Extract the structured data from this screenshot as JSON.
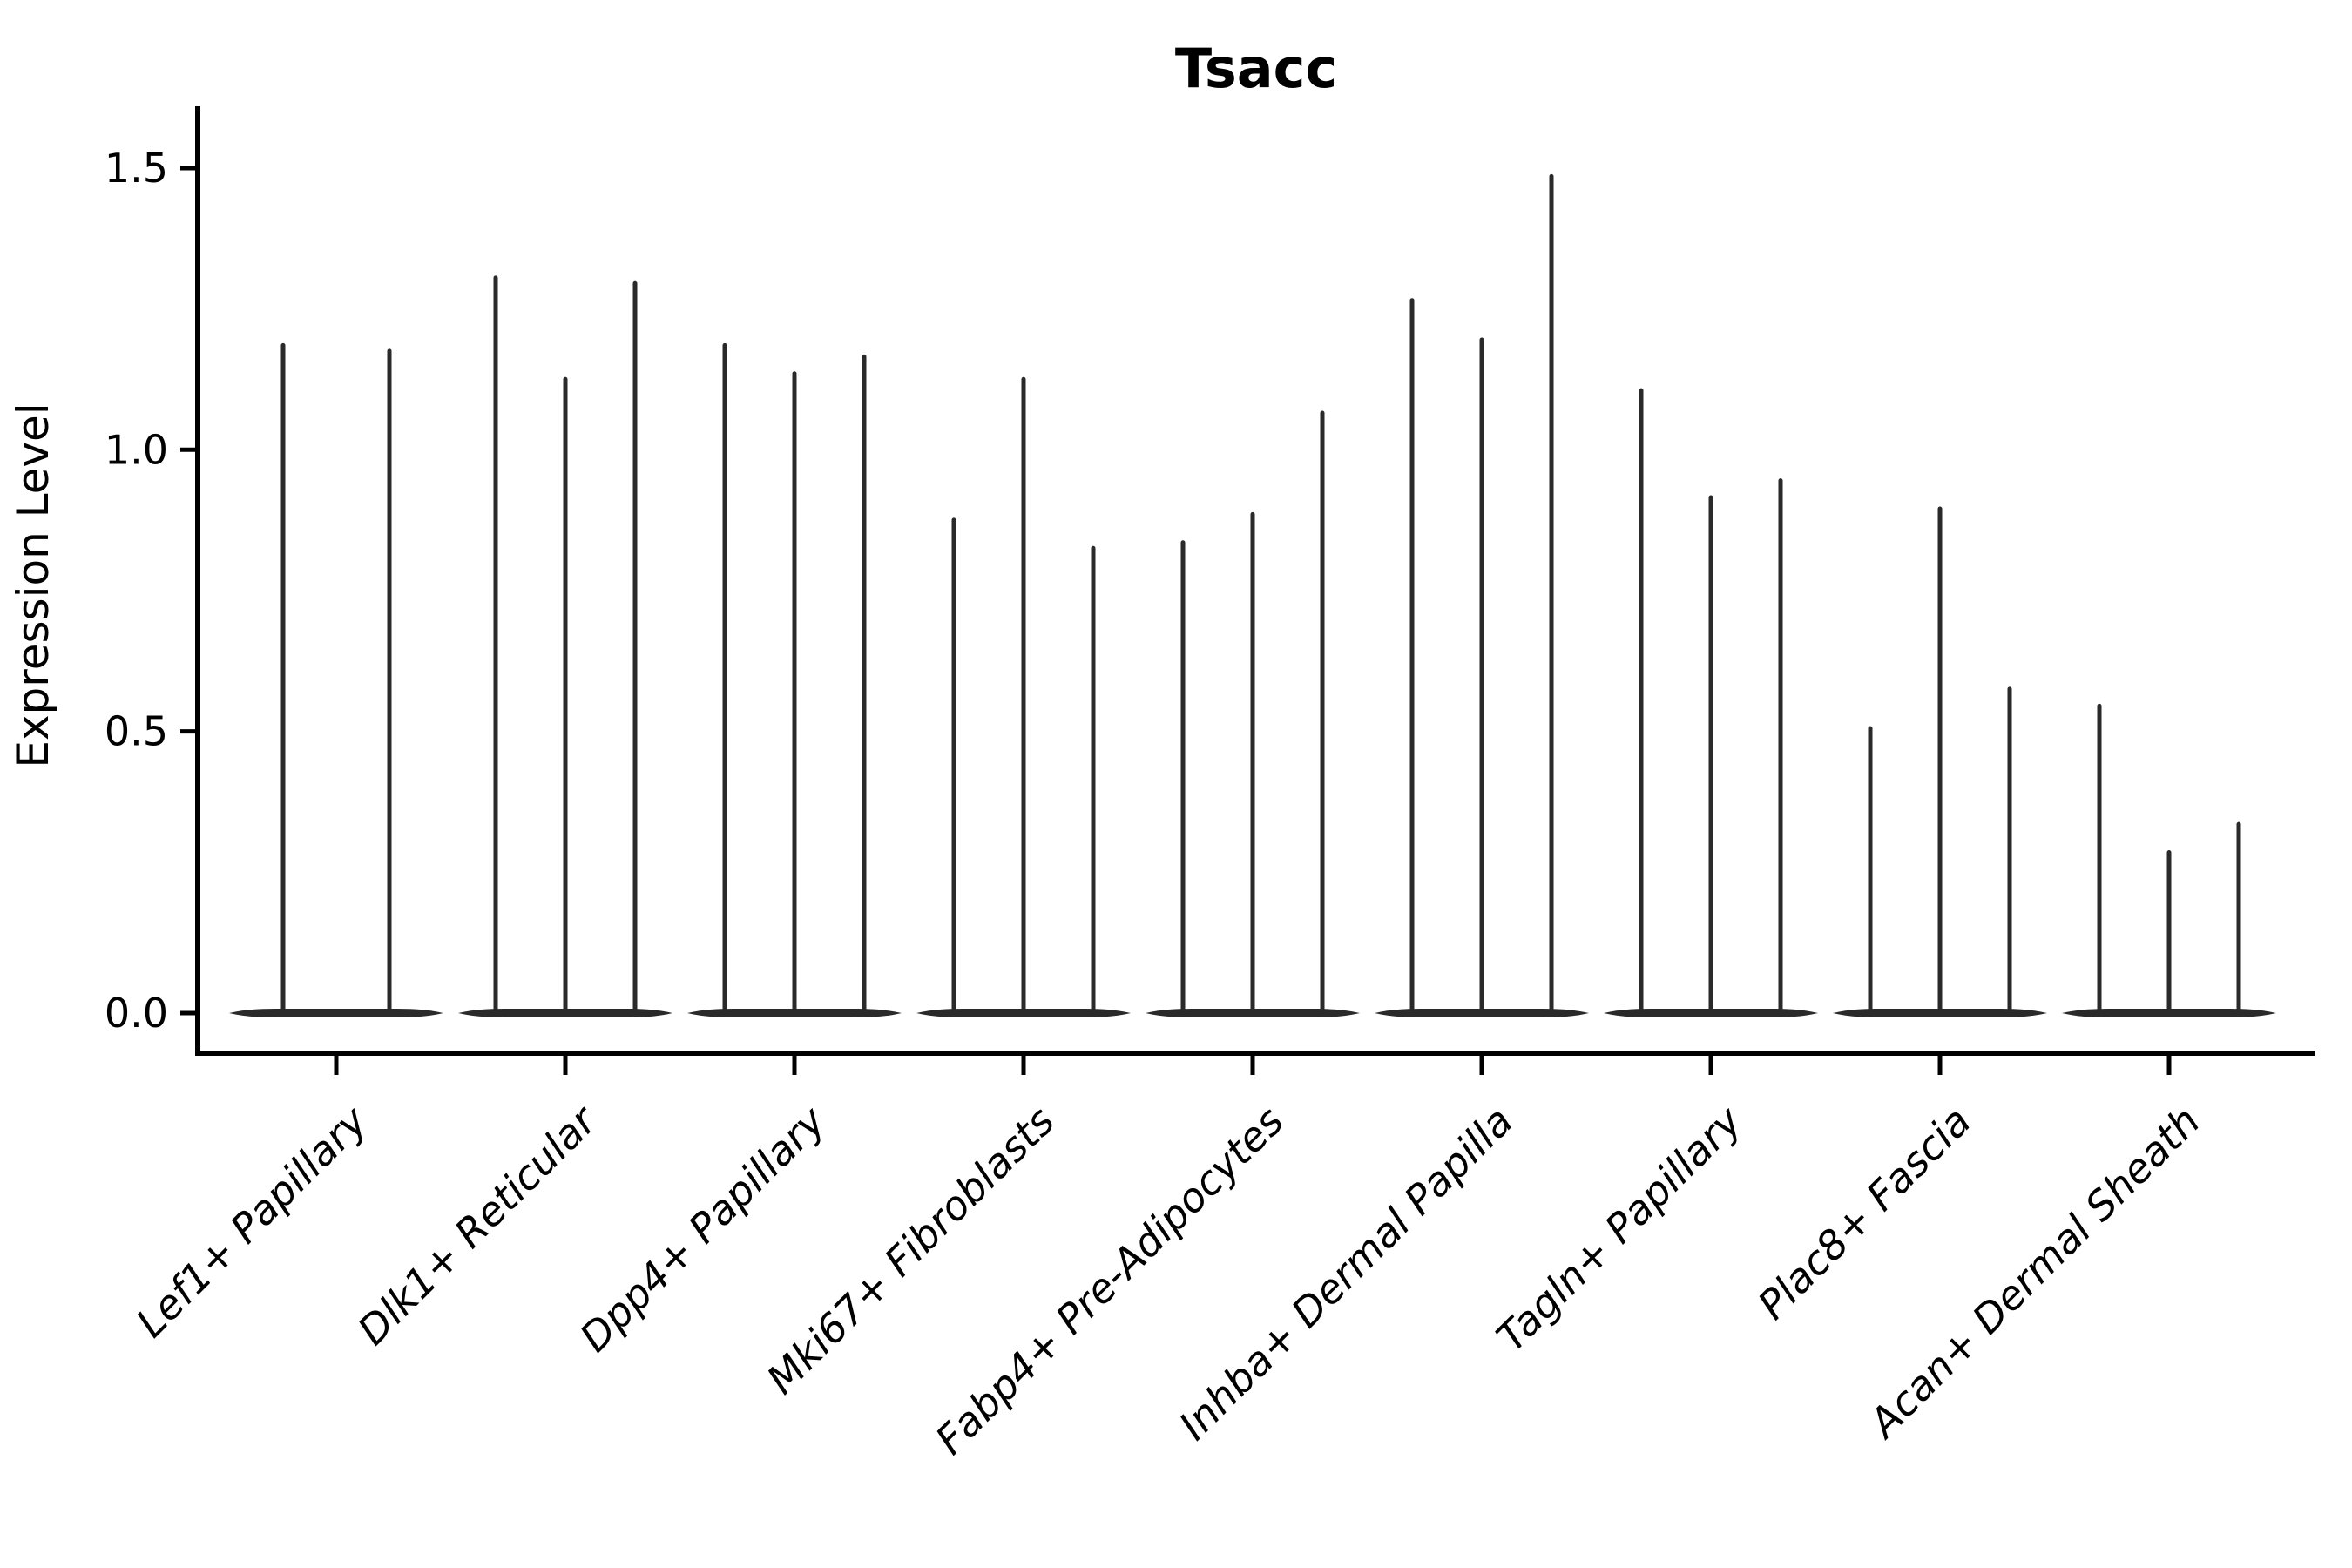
{
  "title": "Tsacc",
  "ylabel": "Expression Level",
  "colors": {
    "violin": "#2a2a2a",
    "axis": "#000000",
    "background": "#ffffff"
  },
  "chart_data": {
    "type": "violin",
    "title": "Tsacc",
    "xlabel": "",
    "ylabel": "Expression Level",
    "ylim": [
      -0.07,
      1.57
    ],
    "yticks": [
      0.0,
      0.5,
      1.0,
      1.5
    ],
    "ytick_labels": [
      "0.0",
      "0.5",
      "1.0",
      "1.5"
    ],
    "grid": false,
    "legend": "none",
    "x_rotation_degrees": 45,
    "categories": [
      "Lef1+ Papillary",
      "Dlk1+ Reticular",
      "Dpp4+ Papillary",
      "Mki67+ Fibroblasts",
      "Fabp4+ Pre-Adipocytes",
      "Inhba+ Dermal Papilla",
      "Tagln+ Papillary",
      "Plac8+ Fascia",
      "Acan+ Dermal Sheath"
    ],
    "description": "Each category shows thin needle-like violins (most mass at expression 0 forming a flat pancake on the baseline, with a thin tail up to the max value).",
    "groups": [
      {
        "label": "Lef1+ Papillary",
        "violin_max_values": [
          1.19,
          1.18
        ]
      },
      {
        "label": "Dlk1+ Reticular",
        "violin_max_values": [
          1.31,
          1.13,
          1.3
        ]
      },
      {
        "label": "Dpp4+ Papillary",
        "violin_max_values": [
          1.19,
          1.14,
          1.17
        ]
      },
      {
        "label": "Mki67+ Fibroblasts",
        "violin_max_values": [
          0.88,
          1.13,
          0.83
        ]
      },
      {
        "label": "Fabp4+ Pre-Adipocytes",
        "violin_max_values": [
          0.84,
          0.89,
          1.07
        ]
      },
      {
        "label": "Inhba+ Dermal Papilla",
        "violin_max_values": [
          1.27,
          1.2,
          1.49
        ]
      },
      {
        "label": "Tagln+ Papillary",
        "violin_max_values": [
          1.11,
          0.92,
          0.95
        ]
      },
      {
        "label": "Plac8+ Fascia",
        "violin_max_values": [
          0.51,
          0.9,
          0.58
        ]
      },
      {
        "label": "Acan+ Dermal Sheath",
        "violin_max_values": [
          0.55,
          0.29,
          0.34
        ]
      }
    ]
  }
}
